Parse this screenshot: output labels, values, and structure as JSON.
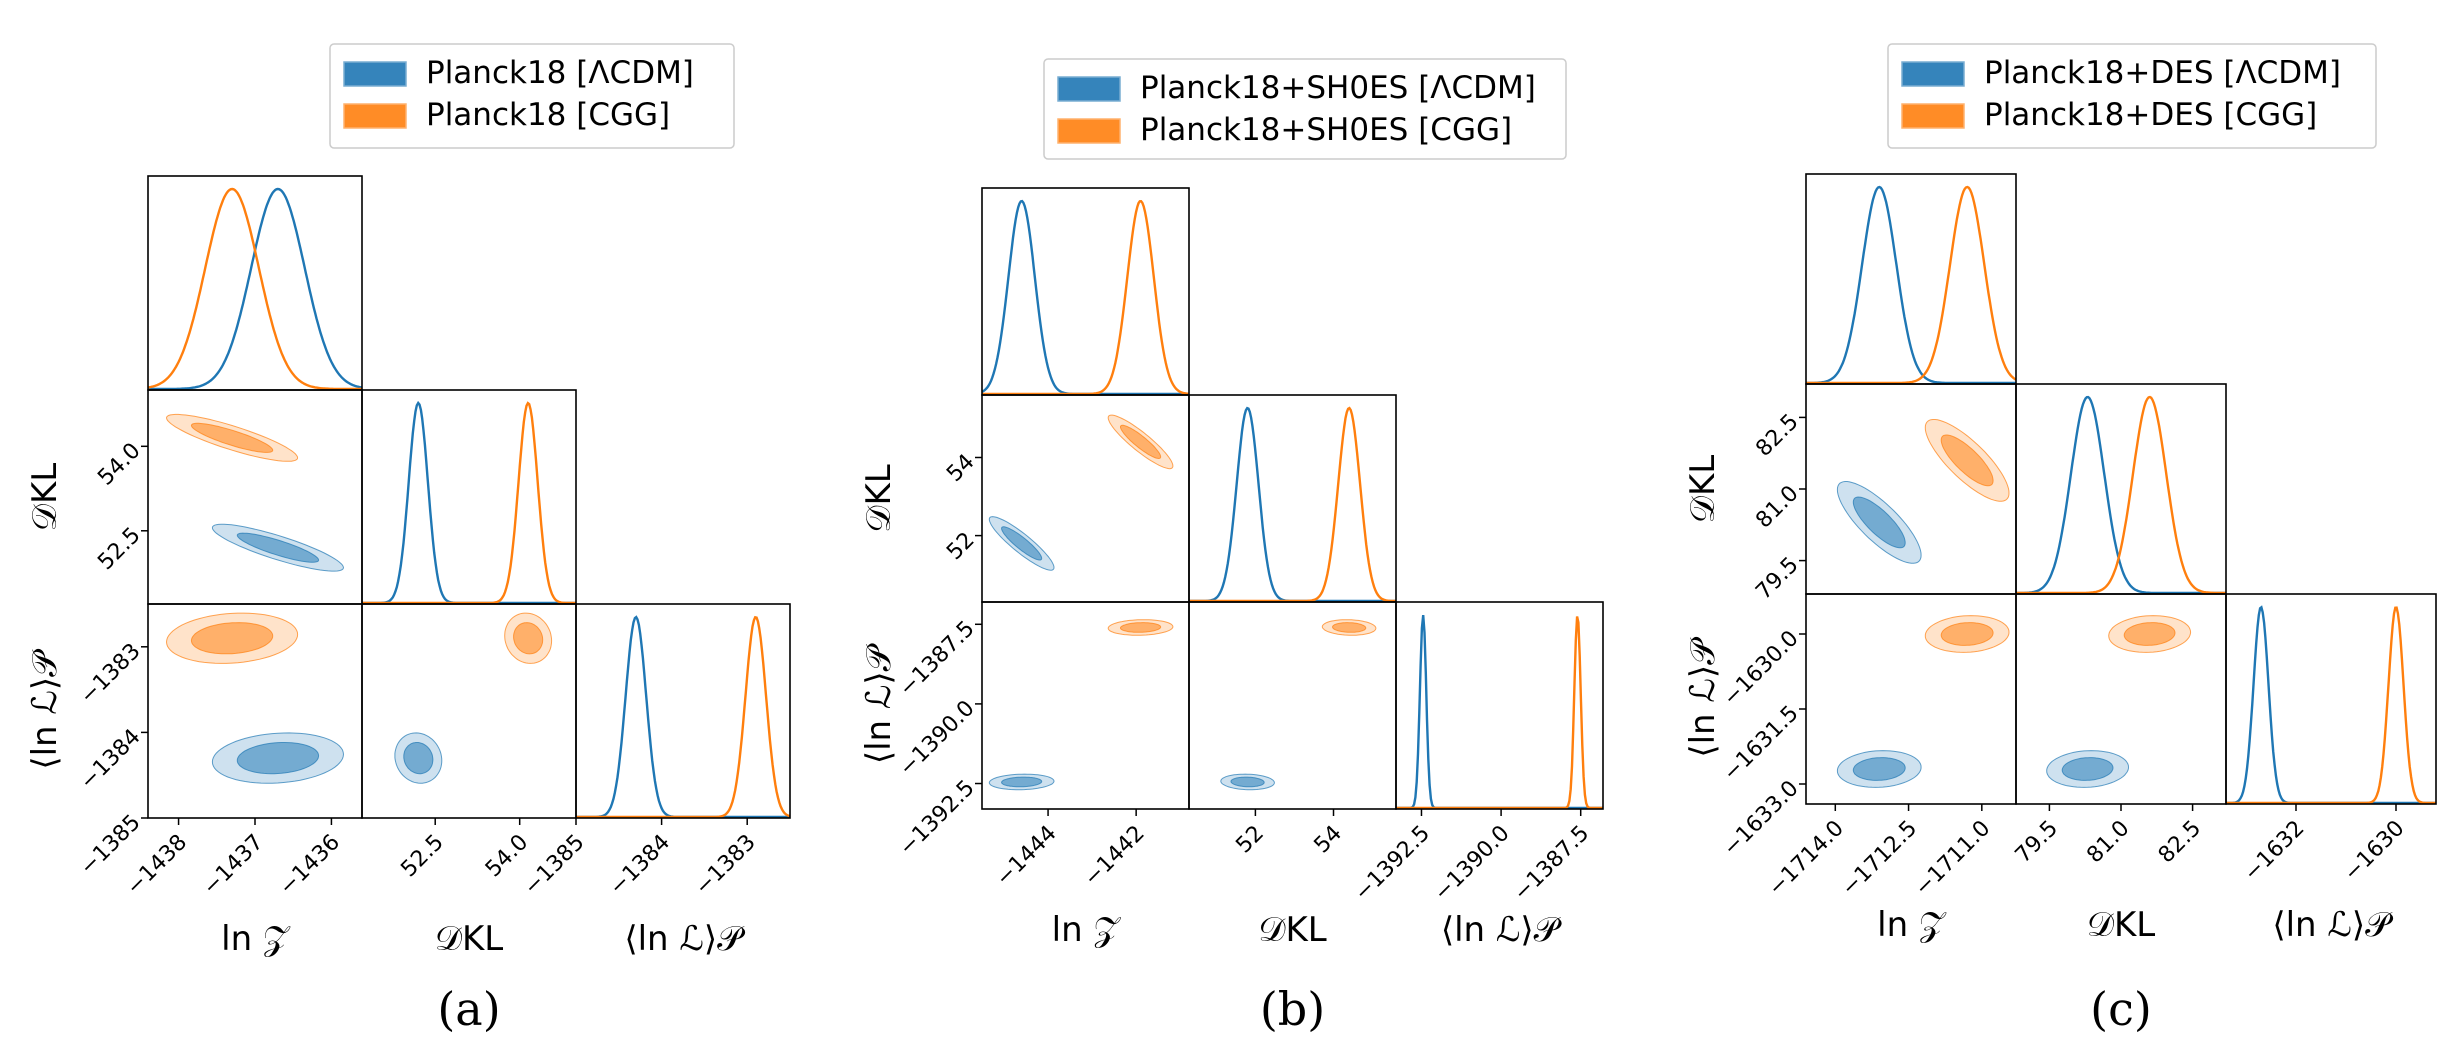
{
  "chart_data": [
    {
      "type": "corner",
      "caption": "(a)",
      "legend": {
        "position": "top",
        "entries": [
          "Planck18 [ΛCDM]",
          "Planck18 [CGG]"
        ]
      },
      "colors": {
        "lcdm": "#1f77b4",
        "cgg": "#ff7f0e"
      },
      "parameters": [
        "ln Z",
        "D_KL",
        "<ln L>_P"
      ],
      "axis_labels": {
        "x": [
          "ln 𝒵",
          "𝒟KL",
          "⟨ln ℒ⟩𝒫"
        ],
        "y": [
          "𝒟KL",
          "⟨ln ℒ⟩𝒫"
        ]
      },
      "ranges": [
        [
          -1438.4,
          -1435.6
        ],
        [
          51.2,
          55.0
        ],
        [
          -1385.0,
          -1382.5
        ]
      ],
      "ticks": [
        {
          "values": [
            -1438,
            -1437,
            -1436
          ],
          "labels": [
            "−1438",
            "−1437",
            "−1436"
          ]
        },
        {
          "values": [
            52.5,
            54.0
          ],
          "labels": [
            "52.5",
            "54.0"
          ]
        },
        {
          "values": [
            -1385,
            -1384,
            -1383
          ],
          "labels": [
            "−1385",
            "−1384",
            "−1383"
          ]
        }
      ],
      "series": [
        {
          "name": "Planck18 [ΛCDM]",
          "mean": [
            -1436.7,
            52.2,
            -1384.3
          ],
          "sd": [
            0.35,
            0.17,
            0.12
          ],
          "corr": [
            [
              1,
              -0.85,
              0.15
            ],
            [
              -0.85,
              1,
              -0.1
            ],
            [
              0.15,
              -0.1,
              1
            ]
          ]
        },
        {
          "name": "Planck18 [CGG]",
          "mean": [
            -1437.3,
            54.15,
            -1382.9
          ],
          "sd": [
            0.35,
            0.17,
            0.12
          ],
          "corr": [
            [
              1,
              -0.85,
              0.15
            ],
            [
              -0.85,
              1,
              -0.1
            ],
            [
              0.15,
              -0.1,
              1
            ]
          ]
        }
      ]
    },
    {
      "type": "corner",
      "caption": "(b)",
      "legend": {
        "position": "top",
        "entries": [
          "Planck18+SH0ES [ΛCDM]",
          "Planck18+SH0ES [CGG]"
        ]
      },
      "colors": {
        "lcdm": "#1f77b4",
        "cgg": "#ff7f0e"
      },
      "parameters": [
        "ln Z",
        "D_KL",
        "<ln L>_P"
      ],
      "axis_labels": {
        "x": [
          "ln 𝒵",
          "𝒟KL",
          "⟨ln ℒ⟩𝒫"
        ],
        "y": [
          "𝒟KL",
          "⟨ln ℒ⟩𝒫"
        ]
      },
      "ranges": [
        [
          -1445.5,
          -1440.8
        ],
        [
          50.3,
          55.6
        ],
        [
          -1393.3,
          -1386.8
        ]
      ],
      "ticks": [
        {
          "values": [
            -1444,
            -1442
          ],
          "labels": [
            "−1444",
            "−1442"
          ]
        },
        {
          "values": [
            52,
            54
          ],
          "labels": [
            "52",
            "54"
          ]
        },
        {
          "values": [
            -1392.5,
            -1390.0,
            -1387.5
          ],
          "labels": [
            "−1392.5",
            "−1390.0",
            "−1387.5"
          ]
        }
      ],
      "series": [
        {
          "name": "Planck18+SH0ES [ΛCDM]",
          "mean": [
            -1444.6,
            51.8,
            -1392.45
          ],
          "sd": [
            0.3,
            0.28,
            0.1
          ],
          "corr": [
            [
              1,
              -0.9,
              0.1
            ],
            [
              -0.9,
              1,
              -0.1
            ],
            [
              0.1,
              -0.1,
              1
            ]
          ]
        },
        {
          "name": "Planck18+SH0ES [CGG]",
          "mean": [
            -1441.9,
            54.4,
            -1387.6
          ],
          "sd": [
            0.3,
            0.28,
            0.1
          ],
          "corr": [
            [
              1,
              -0.9,
              0.1
            ],
            [
              -0.9,
              1,
              -0.1
            ],
            [
              0.1,
              -0.1,
              1
            ]
          ]
        }
      ]
    },
    {
      "type": "corner",
      "caption": "(c)",
      "legend": {
        "position": "top",
        "entries": [
          "Planck18+DES [ΛCDM]",
          "Planck18+DES [CGG]"
        ]
      },
      "colors": {
        "lcdm": "#1f77b4",
        "cgg": "#ff7f0e"
      },
      "parameters": [
        "ln Z",
        "D_KL",
        "<ln L>_P"
      ],
      "axis_labels": {
        "x": [
          "ln 𝒵",
          "𝒟KL",
          "⟨ln ℒ⟩𝒫"
        ],
        "y": [
          "𝒟KL",
          "⟨ln ℒ⟩𝒫"
        ]
      },
      "ranges": [
        [
          -1714.6,
          -1710.3
        ],
        [
          78.8,
          83.2
        ],
        [
          -1633.4,
          -1629.2
        ]
      ],
      "ticks": [
        {
          "values": [
            -1714.0,
            -1712.5,
            -1711.0
          ],
          "labels": [
            "−1714.0",
            "−1712.5",
            "−1711.0"
          ]
        },
        {
          "values": [
            79.5,
            81.0,
            82.5
          ],
          "labels": [
            "79.5",
            "81.0",
            "82.5"
          ]
        },
        {
          "values": [
            -1632,
            -1630
          ],
          "labels": [
            "−1632",
            "−1630"
          ]
        }
      ],
      "y_ticks_row2": {
        "values": [
          -1630.0,
          -1631.5,
          -1633.0
        ],
        "labels": [
          "−1630.0",
          "−1631.5",
          "−1633.0"
        ]
      },
      "series": [
        {
          "name": "Planck18+DES [ΛCDM]",
          "mean": [
            -1713.1,
            80.3,
            -1632.7
          ],
          "sd": [
            0.35,
            0.35,
            0.15
          ],
          "corr": [
            [
              1,
              -0.8,
              0.1
            ],
            [
              -0.8,
              1,
              0.1
            ],
            [
              0.1,
              0.1,
              1
            ]
          ]
        },
        {
          "name": "Planck18+DES [CGG]",
          "mean": [
            -1711.3,
            81.6,
            -1630.0
          ],
          "sd": [
            0.35,
            0.35,
            0.15
          ],
          "corr": [
            [
              1,
              -0.8,
              0.1
            ],
            [
              -0.8,
              1,
              0.1
            ],
            [
              0.1,
              0.1,
              1
            ]
          ]
        }
      ]
    }
  ]
}
